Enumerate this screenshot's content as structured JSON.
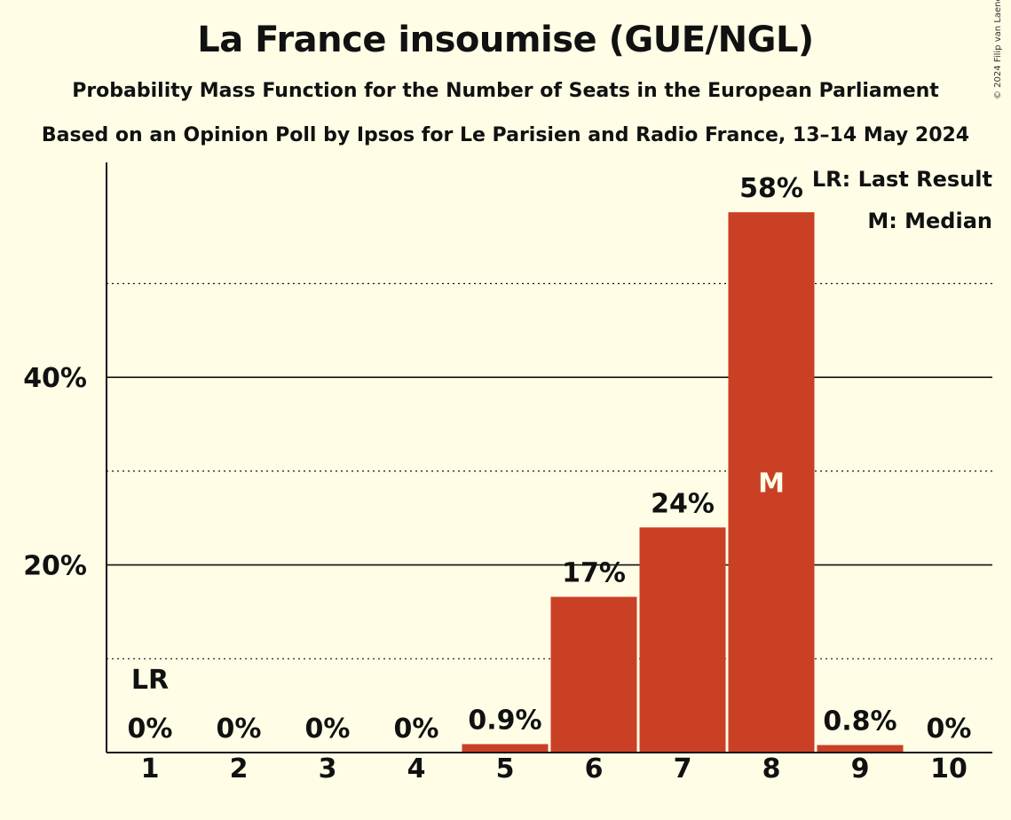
{
  "title": "La France insoumise (GUE/NGL)",
  "subtitle": "Probability Mass Function for the Number of Seats in the European Parliament",
  "subtitle2": "Based on an Opinion Poll by Ipsos for Le Parisien and Radio France, 13–14 May 2024",
  "copyright": "© 2024 Filip van Laenen",
  "legend": {
    "last_result": "LR: Last Result",
    "median": "M: Median"
  },
  "markers": {
    "last_result_label": "LR",
    "last_result_seat": 1,
    "median_label": "M",
    "median_seat": 8
  },
  "colors": {
    "bar": "#C94025",
    "background": "#FFFDE6"
  },
  "chart_data": {
    "type": "bar",
    "categories": [
      "1",
      "2",
      "3",
      "4",
      "5",
      "6",
      "7",
      "8",
      "9",
      "10"
    ],
    "values": [
      0,
      0,
      0,
      0,
      0.9,
      16.6,
      24.0,
      57.6,
      0.8,
      0
    ],
    "data_labels": [
      "0%",
      "0%",
      "0%",
      "0%",
      "0.9%",
      "17%",
      "24%",
      "58%",
      "0.8%",
      "0%"
    ],
    "y_ticks": [
      {
        "value": 20,
        "label": "20%"
      },
      {
        "value": 40,
        "label": "40%"
      }
    ],
    "minor_gridlines": [
      10,
      30,
      50
    ],
    "ylim": [
      0,
      63
    ],
    "grid": true,
    "legend_position": "top-right"
  }
}
